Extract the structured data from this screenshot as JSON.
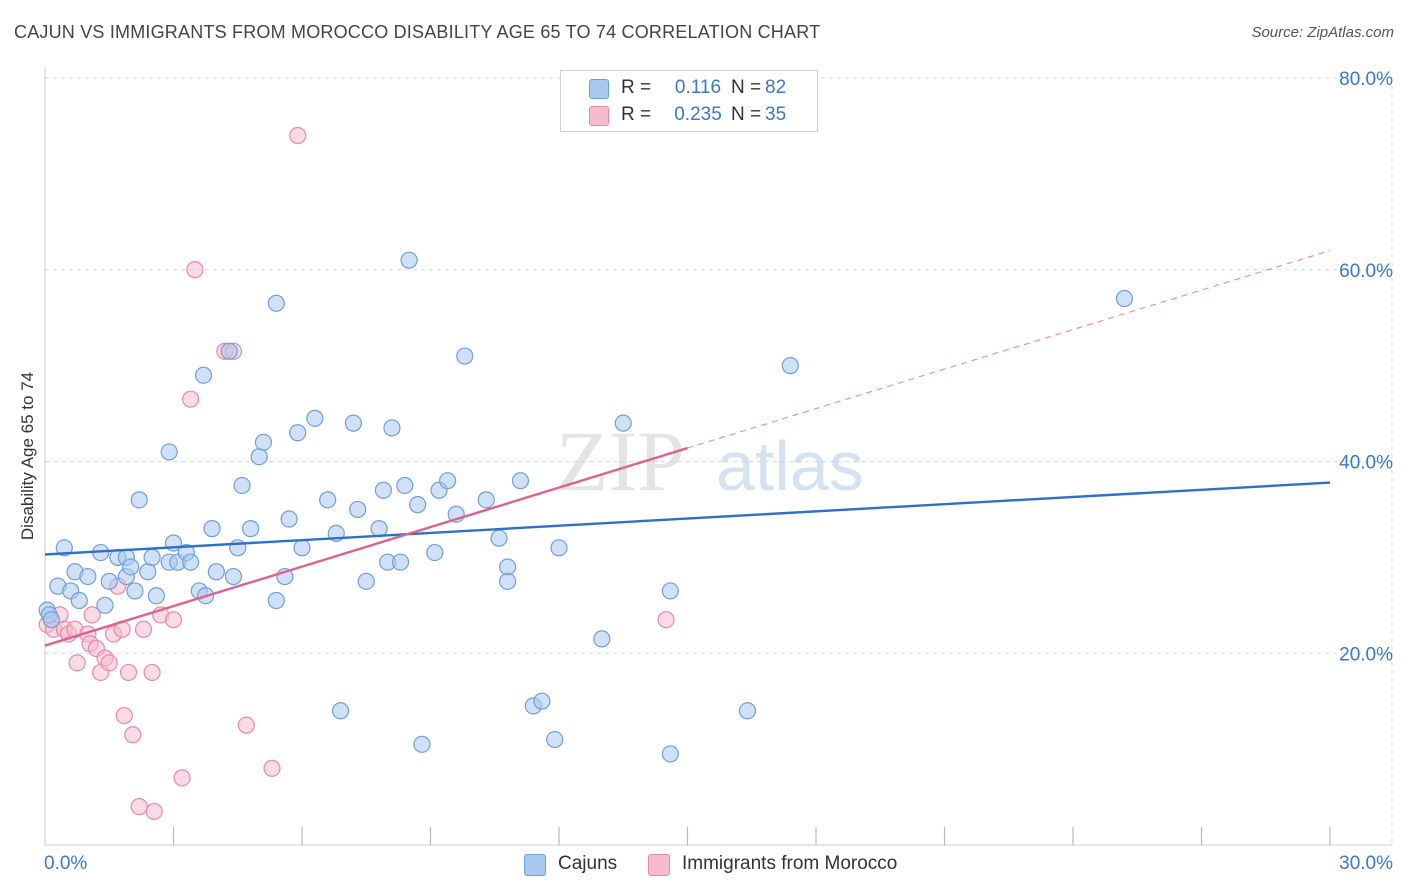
{
  "title": "CAJUN VS IMMIGRANTS FROM MOROCCO DISABILITY AGE 65 TO 74 CORRELATION CHART",
  "source": "Source: ZipAtlas.com",
  "watermark": {
    "part1": "ZIP",
    "part2": "atlas"
  },
  "legend": {
    "rows": [
      {
        "r_label": "R =",
        "r_value": "0.116",
        "n_label": "N =",
        "n_value": "82"
      },
      {
        "r_label": "R =",
        "r_value": "0.235",
        "n_label": "N =",
        "n_value": "35"
      }
    ]
  },
  "bottom_legend": {
    "series1": "Cajuns",
    "series2": "Immigrants from Morocco"
  },
  "colors": {
    "cajun_fill": "#a9c8f0",
    "cajun_stroke": "#6f9fd8",
    "cajun_line": "#2e6fcc",
    "morocco_fill": "#f6bccd",
    "morocco_stroke": "#e88aa8",
    "morocco_line": "#e0628c",
    "axis_text": "#3a78c9",
    "grid": "#d9d9d9"
  },
  "chart_data": {
    "type": "scatter",
    "title": "CAJUN VS IMMIGRANTS FROM MOROCCO DISABILITY AGE 65 TO 74 CORRELATION CHART",
    "xlabel": "",
    "ylabel": "Disability Age 65 to 74",
    "xlim": [
      0,
      30
    ],
    "ylim": [
      0,
      80
    ],
    "x_tick_labels": [
      "0.0%",
      "30.0%"
    ],
    "y_ticks": [
      20,
      40,
      60,
      80
    ],
    "y_tick_labels": [
      "20.0%",
      "40.0%",
      "60.0%",
      "80.0%"
    ],
    "grid": true,
    "legend_position": "top-center",
    "series": [
      {
        "name": "Cajuns",
        "r": 0.116,
        "n": 82,
        "trend": {
          "x0": 0,
          "y0": 30.3,
          "x1": 30,
          "y1": 37.8,
          "dashed_from": null
        },
        "points": [
          [
            0.05,
            24.5
          ],
          [
            0.1,
            24.0
          ],
          [
            0.3,
            27.0
          ],
          [
            0.45,
            31.0
          ],
          [
            0.6,
            26.5
          ],
          [
            0.7,
            28.5
          ],
          [
            0.8,
            25.5
          ],
          [
            1.0,
            28.0
          ],
          [
            1.3,
            30.5
          ],
          [
            1.4,
            25.0
          ],
          [
            1.5,
            27.5
          ],
          [
            1.7,
            30.0
          ],
          [
            1.9,
            30.0
          ],
          [
            1.9,
            28.0
          ],
          [
            2.0,
            29.0
          ],
          [
            2.1,
            26.5
          ],
          [
            2.2,
            36.0
          ],
          [
            2.4,
            28.5
          ],
          [
            2.5,
            30.0
          ],
          [
            2.6,
            26.0
          ],
          [
            2.9,
            29.5
          ],
          [
            2.9,
            41.0
          ],
          [
            3.0,
            31.5
          ],
          [
            3.1,
            29.5
          ],
          [
            3.3,
            30.5
          ],
          [
            3.4,
            29.5
          ],
          [
            3.6,
            26.5
          ],
          [
            3.7,
            49.0
          ],
          [
            3.75,
            26.0
          ],
          [
            3.9,
            33.0
          ],
          [
            4.0,
            28.5
          ],
          [
            4.3,
            51.5
          ],
          [
            4.4,
            28.0
          ],
          [
            4.5,
            31.0
          ],
          [
            4.6,
            37.5
          ],
          [
            4.8,
            33.0
          ],
          [
            5.0,
            40.5
          ],
          [
            5.1,
            42.0
          ],
          [
            5.4,
            25.5
          ],
          [
            5.4,
            56.5
          ],
          [
            5.6,
            28.0
          ],
          [
            5.7,
            34.0
          ],
          [
            5.9,
            43.0
          ],
          [
            6.0,
            31.0
          ],
          [
            6.3,
            44.5
          ],
          [
            6.6,
            36.0
          ],
          [
            6.8,
            32.5
          ],
          [
            6.9,
            14.0
          ],
          [
            7.2,
            44.0
          ],
          [
            7.3,
            35.0
          ],
          [
            7.5,
            27.5
          ],
          [
            7.8,
            33.0
          ],
          [
            7.9,
            37.0
          ],
          [
            8.0,
            29.5
          ],
          [
            8.1,
            43.5
          ],
          [
            8.3,
            29.5
          ],
          [
            8.4,
            37.5
          ],
          [
            8.5,
            61.0
          ],
          [
            8.7,
            35.5
          ],
          [
            8.8,
            10.5
          ],
          [
            9.1,
            30.5
          ],
          [
            9.2,
            37.0
          ],
          [
            9.4,
            38.0
          ],
          [
            9.6,
            34.5
          ],
          [
            9.8,
            51.0
          ],
          [
            10.3,
            36.0
          ],
          [
            10.6,
            32.0
          ],
          [
            10.8,
            29.0
          ],
          [
            10.8,
            27.5
          ],
          [
            11.1,
            38.0
          ],
          [
            11.4,
            14.5
          ],
          [
            11.6,
            15.0
          ],
          [
            11.9,
            11.0
          ],
          [
            12.0,
            31.0
          ],
          [
            13.0,
            21.5
          ],
          [
            13.5,
            44.0
          ],
          [
            14.6,
            26.5
          ],
          [
            14.6,
            9.5
          ],
          [
            16.4,
            14.0
          ],
          [
            17.4,
            50.0
          ],
          [
            25.2,
            57.0
          ],
          [
            0.15,
            23.5
          ]
        ]
      },
      {
        "name": "Immigrants from Morocco",
        "r": 0.235,
        "n": 35,
        "trend": {
          "x0": 0,
          "y0": 20.8,
          "x1": 30,
          "y1": 62.0,
          "dashed_from": 15.0
        },
        "points": [
          [
            0.05,
            23.0
          ],
          [
            0.2,
            22.5
          ],
          [
            0.35,
            24.0
          ],
          [
            0.45,
            22.5
          ],
          [
            0.55,
            22.0
          ],
          [
            0.7,
            22.5
          ],
          [
            0.75,
            19.0
          ],
          [
            1.0,
            22.0
          ],
          [
            1.1,
            24.0
          ],
          [
            1.05,
            21.0
          ],
          [
            1.2,
            20.5
          ],
          [
            1.3,
            18.0
          ],
          [
            1.4,
            19.5
          ],
          [
            1.5,
            19.0
          ],
          [
            1.6,
            22.0
          ],
          [
            1.7,
            27.0
          ],
          [
            1.8,
            22.5
          ],
          [
            1.85,
            13.5
          ],
          [
            1.95,
            18.0
          ],
          [
            2.05,
            11.5
          ],
          [
            2.2,
            4.0
          ],
          [
            2.3,
            22.5
          ],
          [
            2.5,
            18.0
          ],
          [
            2.55,
            3.5
          ],
          [
            2.7,
            24.0
          ],
          [
            3.0,
            23.5
          ],
          [
            3.2,
            7.0
          ],
          [
            3.4,
            46.5
          ],
          [
            3.5,
            60.0
          ],
          [
            4.2,
            51.5
          ],
          [
            4.4,
            51.5
          ],
          [
            4.7,
            12.5
          ],
          [
            5.3,
            8.0
          ],
          [
            5.9,
            74.0
          ],
          [
            14.5,
            23.5
          ]
        ]
      }
    ]
  }
}
